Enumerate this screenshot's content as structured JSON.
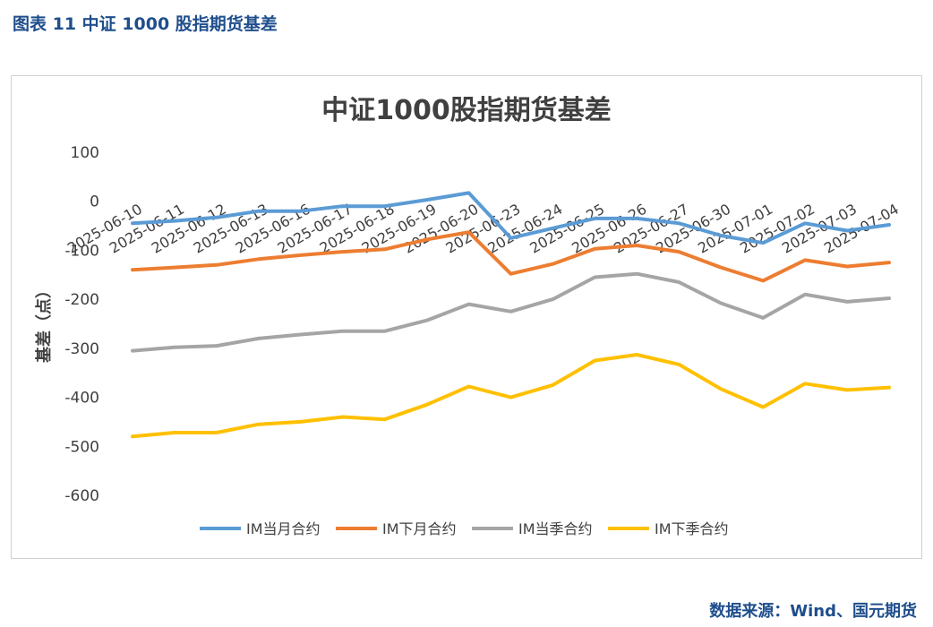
{
  "caption": "图表 11  中证 1000 股指期货基差",
  "source": "数据来源：Wind、国元期货",
  "chart_data": {
    "type": "line",
    "title": "中证1000股指期货基差",
    "ylabel": "基差（点）",
    "xlabel": "",
    "ylim": [
      -600,
      100
    ],
    "yticks": [
      100,
      0,
      -100,
      -200,
      -300,
      -400,
      -500,
      -600
    ],
    "grid": false,
    "legend_position": "bottom",
    "categories": [
      "2025-06-10",
      "2025-06-11",
      "2025-06-12",
      "2025-06-13",
      "2025-06-16",
      "2025-06-17",
      "2025-06-18",
      "2025-06-19",
      "2025-06-20",
      "2025-06-23",
      "2025-06-24",
      "2025-06-25",
      "2025-06-26",
      "2025-06-27",
      "2025-06-30",
      "2025-07-01",
      "2025-07-02",
      "2025-07-03",
      "2025-07-04"
    ],
    "series": [
      {
        "name": "IM当月合约",
        "color": "#5b9bd5",
        "values": [
          -45,
          -40,
          -33,
          -20,
          -20,
          -10,
          -10,
          3,
          17,
          -75,
          -55,
          -35,
          -35,
          -45,
          -70,
          -85,
          -45,
          -60,
          -48
        ]
      },
      {
        "name": "IM下月合约",
        "color": "#ed7d31",
        "values": [
          -140,
          -135,
          -130,
          -118,
          -110,
          -103,
          -98,
          -78,
          -63,
          -148,
          -128,
          -97,
          -90,
          -103,
          -135,
          -162,
          -120,
          -133,
          -125
        ]
      },
      {
        "name": "IM当季合约",
        "color": "#a5a5a5",
        "values": [
          -305,
          -298,
          -295,
          -280,
          -272,
          -265,
          -265,
          -243,
          -210,
          -225,
          -200,
          -155,
          -148,
          -165,
          -208,
          -238,
          -190,
          -205,
          -198
        ]
      },
      {
        "name": "IM下季合约",
        "color": "#ffc000",
        "values": [
          -480,
          -472,
          -472,
          -455,
          -450,
          -440,
          -445,
          -415,
          -378,
          -400,
          -375,
          -325,
          -313,
          -333,
          -383,
          -420,
          -372,
          -385,
          -380
        ]
      }
    ]
  }
}
